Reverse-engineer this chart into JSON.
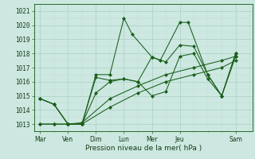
{
  "background_color": "#cce8e0",
  "grid_color_major": "#aacfc8",
  "grid_color_minor": "#c0ddd8",
  "line_color": "#1a5e1a",
  "xlabel": "Pression niveau de la mer( hPa )",
  "ylim": [
    1012.5,
    1021.5
  ],
  "yticks": [
    1013,
    1014,
    1015,
    1016,
    1017,
    1018,
    1019,
    1020,
    1021
  ],
  "xtick_positions": [
    0,
    1,
    2,
    3,
    4,
    5,
    7
  ],
  "xtick_labels": [
    "Mar",
    "Ven",
    "Dim",
    "Lun",
    "Mer",
    "Jeu",
    "Sam"
  ],
  "series": [
    {
      "x": [
        0,
        0.5,
        1.0,
        1.5,
        2.0,
        2.5,
        3.0,
        3.3,
        4.0,
        4.3,
        5.0,
        5.3,
        6.0,
        6.5,
        7.0
      ],
      "y": [
        1014.8,
        1014.4,
        1013.0,
        1013.0,
        1016.5,
        1016.5,
        1020.5,
        1019.35,
        1017.75,
        1017.5,
        1020.2,
        1020.2,
        1016.5,
        1015.0,
        1018.0
      ]
    },
    {
      "x": [
        0,
        0.5,
        1.0,
        1.5,
        2.0,
        2.5,
        3.0,
        3.5,
        4.0,
        4.5,
        5.0,
        5.5,
        6.0,
        6.5,
        7.0
      ],
      "y": [
        1014.8,
        1014.4,
        1013.0,
        1013.0,
        1016.3,
        1016.1,
        1016.2,
        1016.0,
        1017.75,
        1017.4,
        1018.6,
        1018.5,
        1016.5,
        1015.0,
        1017.8
      ]
    },
    {
      "x": [
        0,
        0.5,
        1.0,
        1.5,
        2.0,
        2.5,
        3.0,
        3.5,
        4.0,
        4.5,
        5.0,
        5.5,
        6.0,
        6.5,
        7.0
      ],
      "y": [
        1014.8,
        1014.4,
        1013.0,
        1013.0,
        1015.2,
        1016.0,
        1016.2,
        1016.0,
        1015.0,
        1015.3,
        1017.8,
        1018.0,
        1016.2,
        1015.0,
        1018.0
      ]
    },
    {
      "x": [
        0,
        0.5,
        1.0,
        1.5,
        2.5,
        3.5,
        4.5,
        5.5,
        6.5,
        7.0
      ],
      "y": [
        1013.0,
        1013.0,
        1013.0,
        1013.1,
        1014.8,
        1015.7,
        1016.5,
        1017.0,
        1017.5,
        1017.8
      ]
    },
    {
      "x": [
        0,
        0.5,
        1.0,
        1.5,
        2.5,
        3.5,
        4.5,
        5.5,
        6.5,
        7.0
      ],
      "y": [
        1013.0,
        1013.0,
        1013.0,
        1013.0,
        1014.2,
        1015.2,
        1016.0,
        1016.5,
        1017.0,
        1017.5
      ]
    }
  ]
}
